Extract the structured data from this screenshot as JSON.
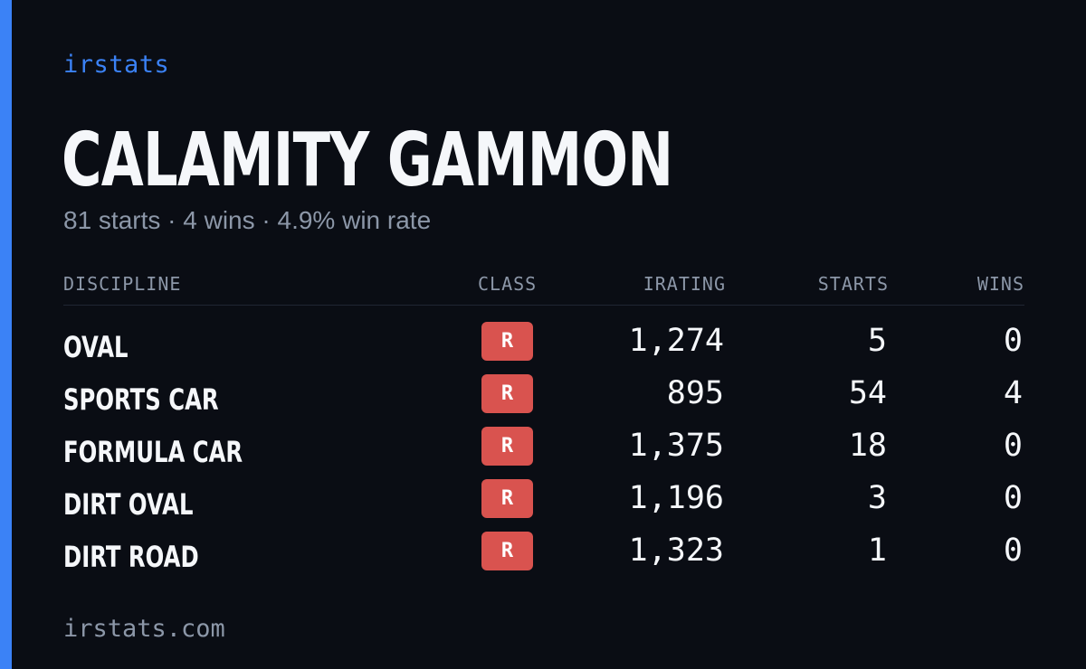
{
  "brand": "irstats",
  "driver": {
    "name": "CALAMITY GAMMON",
    "summary": "81 starts · 4 wins · 4.9% win rate"
  },
  "table": {
    "headers": {
      "discipline": "DISCIPLINE",
      "class": "CLASS",
      "irating": "IRATING",
      "starts": "STARTS",
      "wins": "WINS"
    },
    "rows": [
      {
        "discipline": "OVAL",
        "class": "R",
        "irating": "1,274",
        "starts": "5",
        "wins": "0"
      },
      {
        "discipline": "SPORTS CAR",
        "class": "R",
        "irating": "895",
        "starts": "54",
        "wins": "4"
      },
      {
        "discipline": "FORMULA CAR",
        "class": "R",
        "irating": "1,375",
        "starts": "18",
        "wins": "0"
      },
      {
        "discipline": "DIRT OVAL",
        "class": "R",
        "irating": "1,196",
        "starts": "3",
        "wins": "0"
      },
      {
        "discipline": "DIRT ROAD",
        "class": "R",
        "irating": "1,323",
        "starts": "1",
        "wins": "0"
      }
    ]
  },
  "footer": "irstats.com",
  "colors": {
    "accent": "#3b82f6",
    "background": "#0a0d14",
    "class_r_badge": "#d9534f",
    "muted_text": "#8c97a8"
  }
}
